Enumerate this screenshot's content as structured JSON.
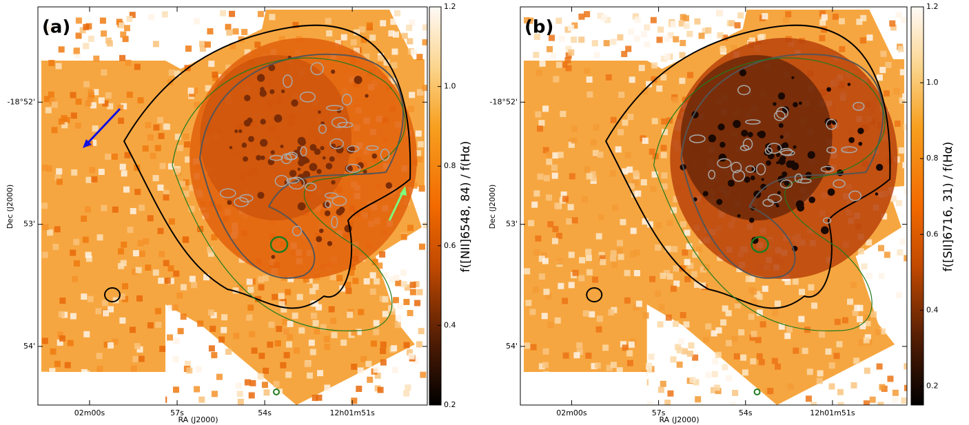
{
  "chart_data": [
    {
      "type": "image",
      "panel_label": "(a)",
      "xlabel": "RA (J2000)",
      "ylabel": "Dec (J2000)",
      "xlim": [
        121.77,
        108.43
      ],
      "xticks": [
        {
          "value": 120,
          "label": "02m00s"
        },
        {
          "value": 117,
          "label": "57s"
        },
        {
          "value": 114,
          "label": "54s"
        },
        {
          "value": 111,
          "label": "12h01m51s"
        }
      ],
      "ylim": [
        -1134.48,
        -1131.22
      ],
      "yticks": [
        {
          "value": -1132,
          "label": "-18°52'"
        },
        {
          "value": -1133,
          "label": "53'"
        },
        {
          "value": -1134,
          "label": "54'"
        }
      ],
      "colorbar_label": "f([NII]6548, 84) / f(Hα)",
      "clim": [
        0.2,
        1.2
      ],
      "cticks": [
        0.2,
        0.4,
        0.6,
        0.8,
        {
          "value": 1,
          "label": "1.0"
        },
        1.2
      ]
    },
    {
      "type": "image",
      "panel_label": "(b)",
      "xlabel": "RA (J2000)",
      "ylabel": "Dec (J2000)",
      "xlim": [
        121.77,
        108.43
      ],
      "xticks": [
        {
          "value": 120,
          "label": "02m00s"
        },
        {
          "value": 117,
          "label": "57s"
        },
        {
          "value": 114,
          "label": "54s"
        },
        {
          "value": 111,
          "label": "12h01m51s"
        }
      ],
      "ylim": [
        -1134.48,
        -1131.22
      ],
      "yticks": [
        {
          "value": -1132,
          "label": "-18°52'"
        },
        {
          "value": -1133,
          "label": "53'"
        },
        {
          "value": -1134,
          "label": "54'"
        }
      ],
      "colorbar_label": "f([SII]6716, 31) / f(Hα)",
      "clim": [
        0.15,
        1.2
      ],
      "cticks": [
        0.2,
        0.4,
        0.6,
        0.8,
        {
          "value": 1,
          "label": "1.0"
        },
        1.2
      ]
    }
  ]
}
